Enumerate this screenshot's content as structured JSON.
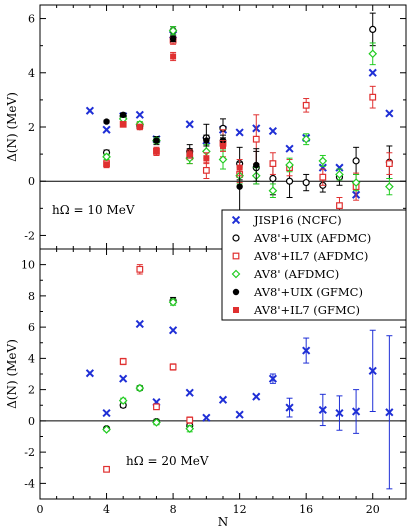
{
  "chart_data": [
    {
      "type": "scatter",
      "panel": "top",
      "ylabel": "Δ(N)  (MeV)",
      "xlabel": "",
      "xlim": [
        0,
        22
      ],
      "ylim": [
        -2.5,
        6.5
      ],
      "yticks": [
        -2,
        0,
        2,
        4,
        6
      ],
      "annotation": "hΩ = 10 MeV",
      "zero_line": true,
      "legend": {
        "placement": "lower-right",
        "entries": [
          "JISP16 (NCFC)",
          "AV8'+UIX (AFDMC)",
          "AV8'+IL7 (AFDMC)",
          "AV8' (AFDMC)",
          "AV8'+UIX (GFMC)",
          "AV8'+IL7 (GFMC)"
        ]
      },
      "series": [
        {
          "name": "JISP16 (NCFC)",
          "marker": "cross",
          "color": "#1f2fd6",
          "points": [
            [
              3,
              2.6
            ],
            [
              4,
              1.9
            ],
            [
              5,
              2.4
            ],
            [
              6,
              2.45
            ],
            [
              7,
              1.55
            ],
            [
              8,
              5.4
            ],
            [
              9,
              2.1
            ],
            [
              10,
              1.5
            ],
            [
              11,
              1.9
            ],
            [
              12,
              1.8
            ],
            [
              13,
              1.95
            ],
            [
              14,
              1.85
            ],
            [
              15,
              1.2
            ],
            [
              16,
              1.6
            ],
            [
              17,
              0.5
            ],
            [
              18,
              0.5
            ],
            [
              19,
              -0.5
            ],
            [
              20,
              4.0
            ],
            [
              21,
              2.5
            ]
          ]
        },
        {
          "name": "AV8'+UIX (AFDMC)",
          "marker": "open-circle",
          "color": "#000000",
          "points": [
            [
              4,
              1.05,
              0.1
            ],
            [
              5,
              2.4,
              0.1
            ],
            [
              6,
              2.05,
              0.1
            ],
            [
              7,
              1.5,
              0.15
            ],
            [
              8,
              5.55,
              0.15
            ],
            [
              9,
              1.1,
              0.25
            ],
            [
              10,
              1.6,
              0.5
            ],
            [
              11,
              1.95,
              0.35
            ],
            [
              12,
              0.65,
              0.6
            ],
            [
              13,
              0.5,
              0.6
            ],
            [
              14,
              0.1,
              0.6
            ],
            [
              15,
              0.0,
              0.6
            ],
            [
              16,
              -0.05,
              0.3
            ],
            [
              17,
              -0.15,
              0.25
            ],
            [
              18,
              0.15,
              0.3
            ],
            [
              19,
              0.75,
              0.5
            ],
            [
              20,
              5.6,
              0.6
            ],
            [
              21,
              0.7,
              0.6
            ]
          ]
        },
        {
          "name": "AV8'+IL7 (AFDMC)",
          "marker": "open-square",
          "color": "#e03030",
          "points": [
            [
              4,
              0.65,
              0.1
            ],
            [
              5,
              2.1,
              0.1
            ],
            [
              6,
              2.05,
              0.1
            ],
            [
              7,
              1.1,
              0.15
            ],
            [
              8,
              5.2,
              0.15
            ],
            [
              9,
              0.9,
              0.25
            ],
            [
              10,
              0.4,
              0.3
            ],
            [
              11,
              1.4,
              0.5
            ],
            [
              12,
              0.25,
              0.3
            ],
            [
              13,
              1.55,
              0.9
            ],
            [
              14,
              0.65,
              0.4
            ],
            [
              15,
              0.5,
              0.3
            ],
            [
              16,
              2.8,
              0.25
            ],
            [
              17,
              0.15,
              0.3
            ],
            [
              18,
              -0.9,
              0.3
            ],
            [
              19,
              -0.2,
              0.5
            ],
            [
              20,
              3.1,
              0.4
            ],
            [
              21,
              0.65,
              0.4
            ]
          ]
        },
        {
          "name": "AV8' (AFDMC)",
          "marker": "open-diamond",
          "color": "#22cc22",
          "points": [
            [
              4,
              0.9,
              0.1
            ],
            [
              5,
              2.3,
              0.1
            ],
            [
              6,
              2.1,
              0.1
            ],
            [
              7,
              1.5,
              0.1
            ],
            [
              8,
              5.55,
              0.15
            ],
            [
              9,
              0.85,
              0.2
            ],
            [
              10,
              1.1,
              0.25
            ],
            [
              11,
              0.8,
              0.35
            ],
            [
              12,
              0.2,
              0.3
            ],
            [
              13,
              0.2,
              0.3
            ],
            [
              14,
              -0.35,
              0.25
            ],
            [
              15,
              0.6,
              0.25
            ],
            [
              16,
              1.55,
              0.2
            ],
            [
              17,
              0.75,
              0.2
            ],
            [
              18,
              0.25,
              0.2
            ],
            [
              19,
              -0.05,
              0.3
            ],
            [
              20,
              4.7,
              0.4
            ],
            [
              21,
              -0.2,
              0.3
            ]
          ]
        },
        {
          "name": "AV8'+UIX (GFMC)",
          "marker": "filled-circle",
          "color": "#000000",
          "points": [
            [
              4,
              2.2,
              0.05
            ],
            [
              5,
              2.45,
              0.05
            ],
            [
              6,
              2.0,
              0.05
            ],
            [
              7,
              1.5,
              0.05
            ],
            [
              8,
              5.25,
              0.1
            ],
            [
              9,
              1.05,
              0.15
            ],
            [
              10,
              1.5,
              0.2
            ],
            [
              11,
              1.5,
              0.2
            ],
            [
              12,
              -0.2,
              0.9
            ],
            [
              13,
              0.6,
              0.6
            ]
          ]
        },
        {
          "name": "AV8'+IL7 (GFMC)",
          "marker": "filled-square",
          "color": "#e03030",
          "points": [
            [
              4,
              0.6,
              0.1
            ],
            [
              5,
              2.1,
              0.1
            ],
            [
              6,
              2.0,
              0.1
            ],
            [
              7,
              1.1,
              0.15
            ],
            [
              8,
              4.6,
              0.15
            ],
            [
              9,
              1.0,
              0.15
            ],
            [
              10,
              0.85,
              0.2
            ],
            [
              11,
              1.3,
              0.2
            ],
            [
              12,
              0.5,
              0.3
            ]
          ]
        }
      ]
    },
    {
      "type": "scatter",
      "panel": "bottom",
      "ylabel": "Δ(N)  (MeV)",
      "xlabel": "N",
      "xlim": [
        0,
        22
      ],
      "ylim": [
        -5,
        11
      ],
      "yticks": [
        -4,
        -2,
        0,
        2,
        4,
        6,
        8,
        10
      ],
      "xticks": [
        0,
        4,
        8,
        12,
        16,
        20
      ],
      "annotation": "hΩ = 20 MeV",
      "zero_line": true,
      "series": [
        {
          "name": "JISP16 (NCFC)",
          "marker": "cross",
          "color": "#1f2fd6",
          "points": [
            [
              3,
              3.05,
              0
            ],
            [
              4,
              0.5,
              0
            ],
            [
              5,
              2.7,
              0
            ],
            [
              6,
              6.2,
              0
            ],
            [
              7,
              1.2,
              0
            ],
            [
              8,
              5.8,
              0
            ],
            [
              9,
              1.8,
              0
            ],
            [
              10,
              0.2,
              0
            ],
            [
              11,
              1.35,
              0
            ],
            [
              12,
              0.4,
              0
            ],
            [
              13,
              1.55,
              0
            ],
            [
              14,
              2.7,
              0.3
            ],
            [
              15,
              0.85,
              0.6
            ],
            [
              16,
              4.5,
              0.8
            ],
            [
              17,
              0.7,
              1.0
            ],
            [
              18,
              0.5,
              1.1
            ],
            [
              19,
              0.6,
              1.4
            ],
            [
              20,
              3.2,
              2.6
            ],
            [
              21,
              0.55,
              4.9
            ]
          ]
        },
        {
          "name": "AV8'+UIX (AFDMC)",
          "marker": "open-circle",
          "color": "#000000",
          "points": [
            [
              4,
              -0.5,
              0.1
            ],
            [
              5,
              1.0,
              0.15
            ],
            [
              6,
              2.1,
              0.15
            ],
            [
              7,
              -0.05,
              0.15
            ],
            [
              8,
              7.7,
              0.2
            ],
            [
              9,
              -0.3,
              0.2
            ]
          ]
        },
        {
          "name": "AV8'+IL7 (AFDMC)",
          "marker": "open-square",
          "color": "#e03030",
          "points": [
            [
              4,
              -3.1,
              0.1
            ],
            [
              5,
              3.8,
              0.2
            ],
            [
              6,
              9.7,
              0.3
            ],
            [
              7,
              0.9,
              0.15
            ],
            [
              8,
              3.45,
              0.2
            ],
            [
              9,
              0.05,
              0.2
            ]
          ]
        },
        {
          "name": "AV8' (AFDMC)",
          "marker": "open-diamond",
          "color": "#22cc22",
          "points": [
            [
              4,
              -0.55,
              0.1
            ],
            [
              5,
              1.3,
              0.15
            ],
            [
              6,
              2.1,
              0.15
            ],
            [
              7,
              -0.1,
              0.15
            ],
            [
              8,
              7.6,
              0.2
            ],
            [
              9,
              -0.5,
              0.2
            ]
          ]
        }
      ]
    }
  ]
}
